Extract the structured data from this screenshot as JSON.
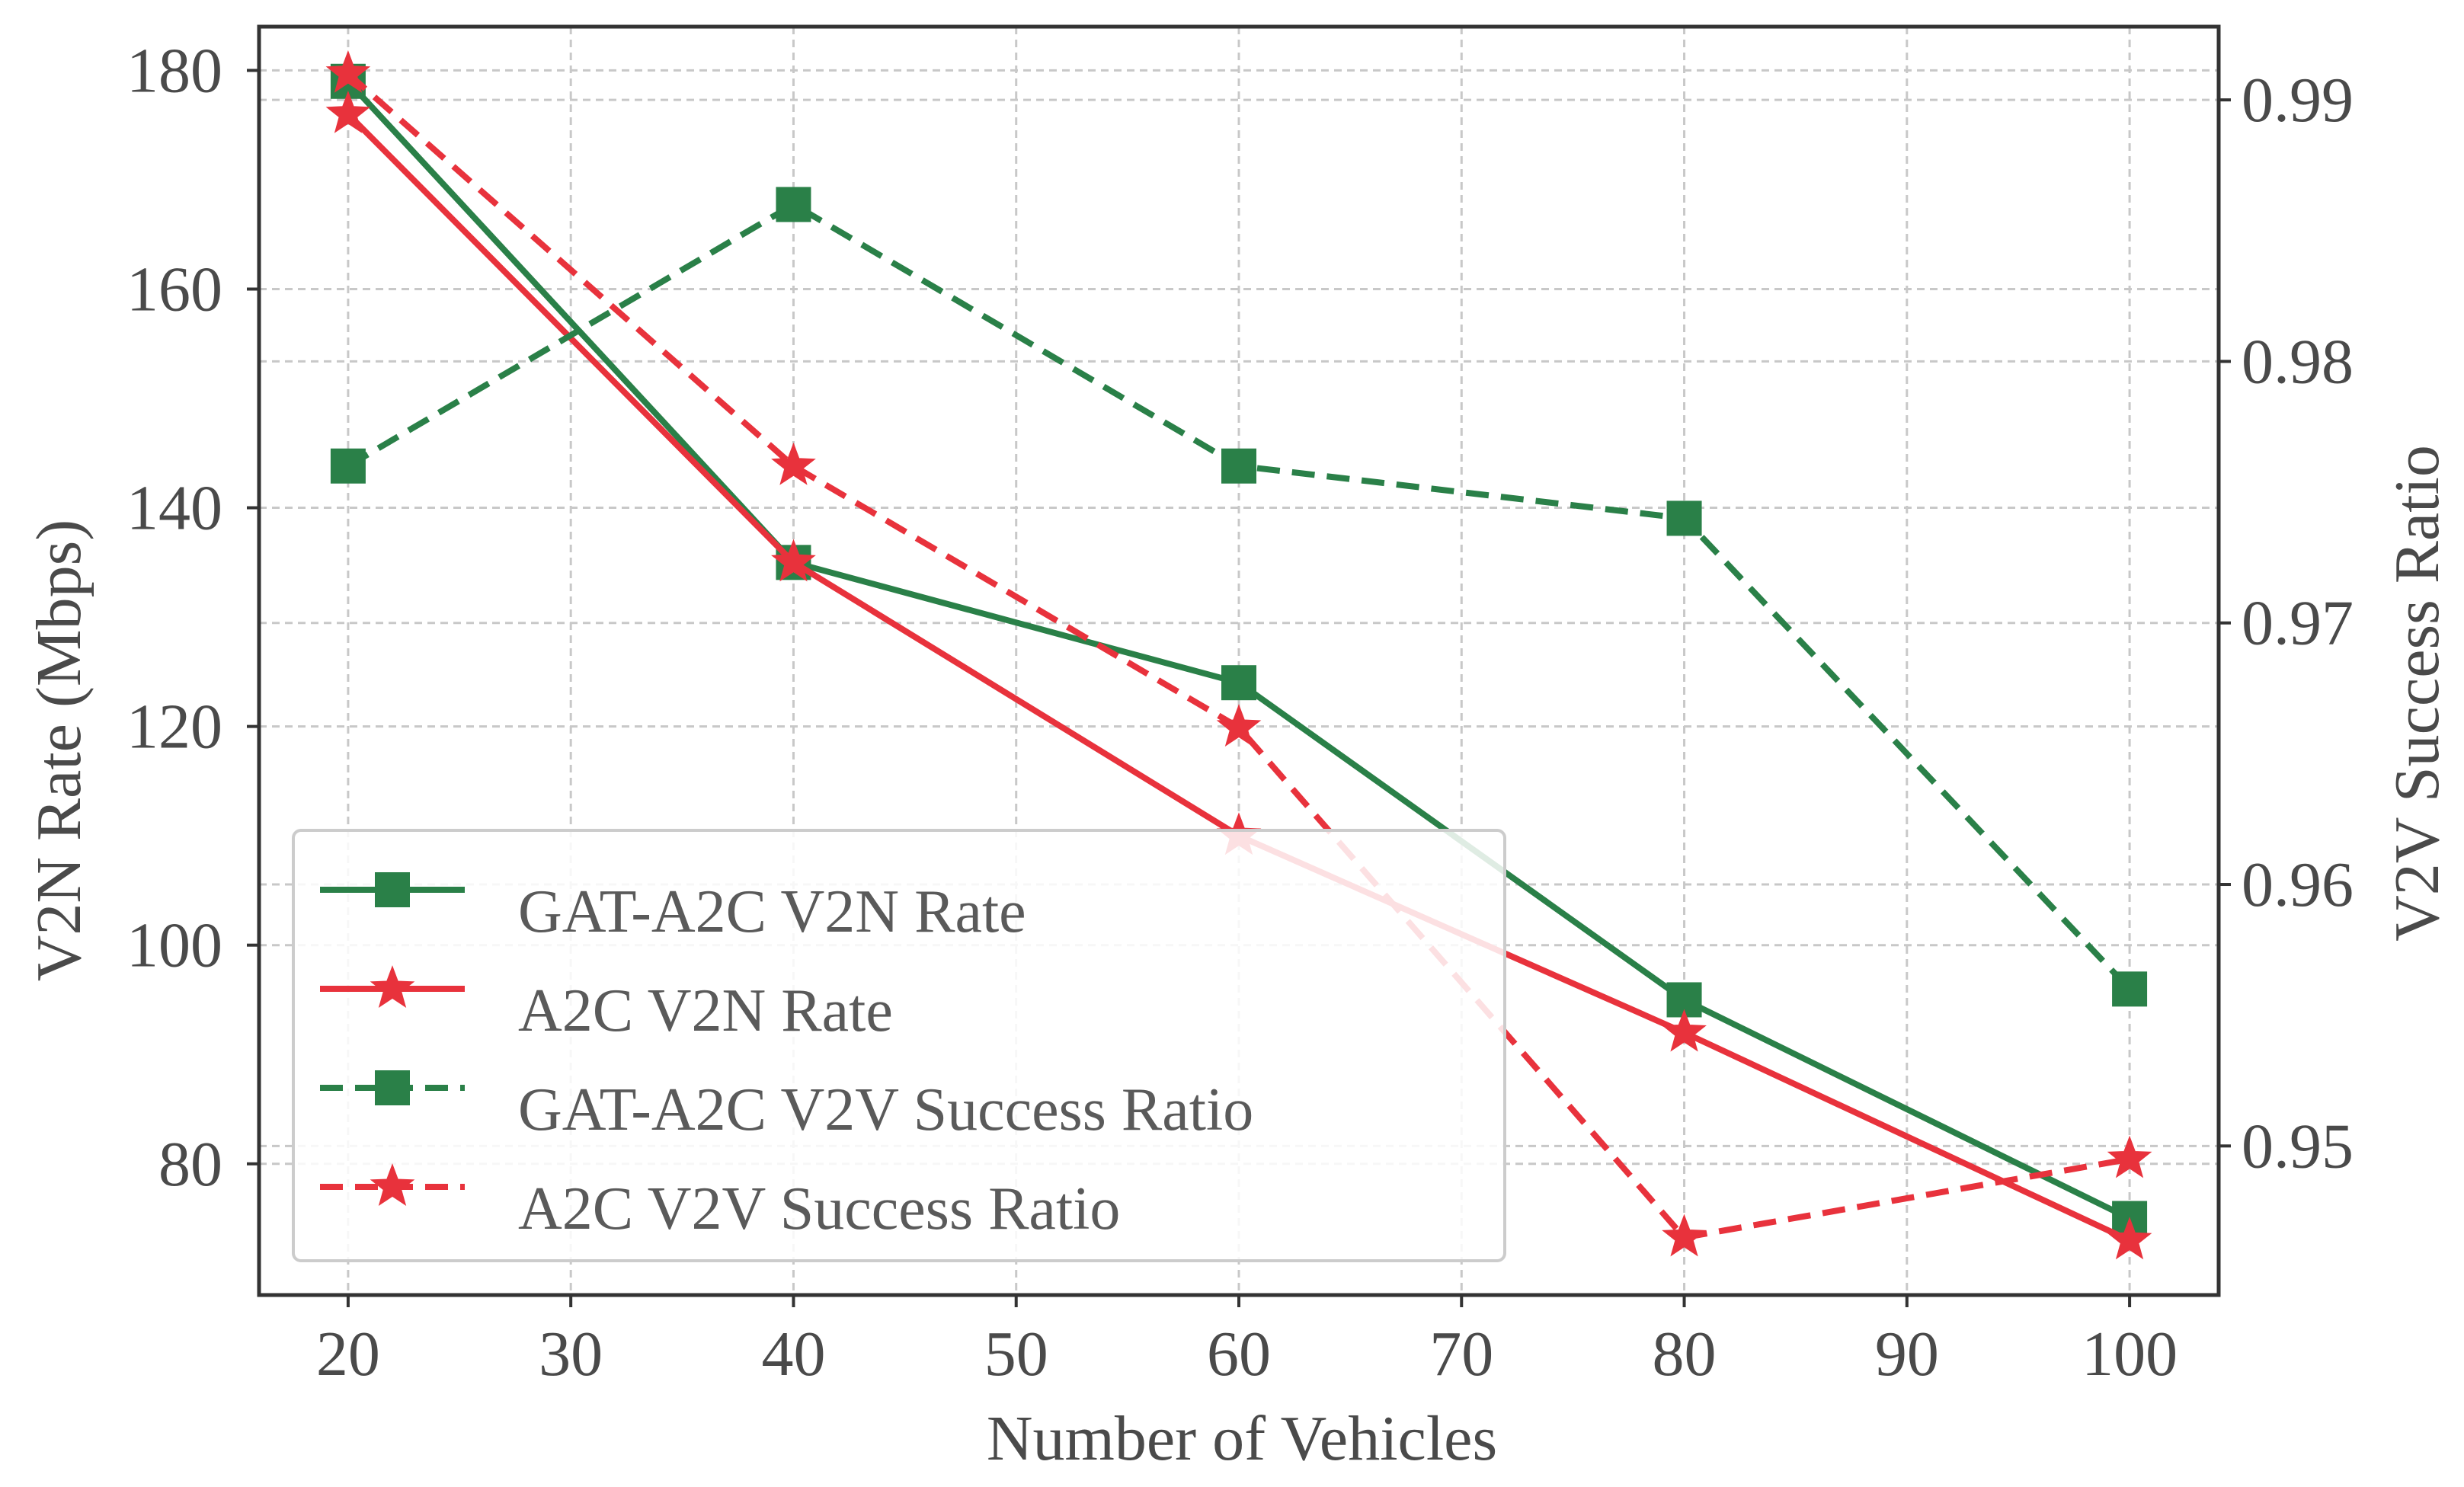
{
  "chart_data": {
    "type": "line",
    "xlabel": "Number of Vehicles",
    "ylabel_left": "V2N Rate (Mbps)",
    "ylabel_right": "V2V Success Ratio",
    "x": [
      20,
      40,
      60,
      80,
      100
    ],
    "xlim": [
      16,
      104
    ],
    "xticks": [
      "20",
      "30",
      "40",
      "50",
      "60",
      "70",
      "80",
      "90",
      "100"
    ],
    "ylim_left": [
      68,
      184
    ],
    "yticks_left": [
      "80",
      "100",
      "120",
      "140",
      "160",
      "180"
    ],
    "ylim_right": [
      0.9443,
      0.9928
    ],
    "yticks_right": [
      "0.95",
      "0.96",
      "0.97",
      "0.98",
      "0.99"
    ],
    "grid": true,
    "legend_position": "lower-left",
    "colors": {
      "green": "#2a8048",
      "red": "#e8323c"
    },
    "series": [
      {
        "name": "GAT-A2C V2N Rate",
        "axis": "left",
        "color": "#2a8048",
        "marker": "square",
        "linestyle": "solid",
        "values": [
          179,
          135,
          124,
          95,
          75
        ]
      },
      {
        "name": "A2C V2N Rate",
        "axis": "left",
        "color": "#e8323c",
        "marker": "star",
        "linestyle": "solid",
        "values": [
          176,
          135,
          110,
          92,
          73
        ]
      },
      {
        "name": "GAT-A2C V2V Success Ratio",
        "axis": "right",
        "color": "#2a8048",
        "marker": "square",
        "linestyle": "dashed",
        "values": [
          0.976,
          0.986,
          0.976,
          0.974,
          0.956
        ]
      },
      {
        "name": "A2C V2V Success Ratio",
        "axis": "right",
        "color": "#e8323c",
        "marker": "star",
        "linestyle": "dashed",
        "values": [
          0.991,
          0.976,
          0.966,
          0.9465,
          0.9495
        ]
      }
    ]
  }
}
